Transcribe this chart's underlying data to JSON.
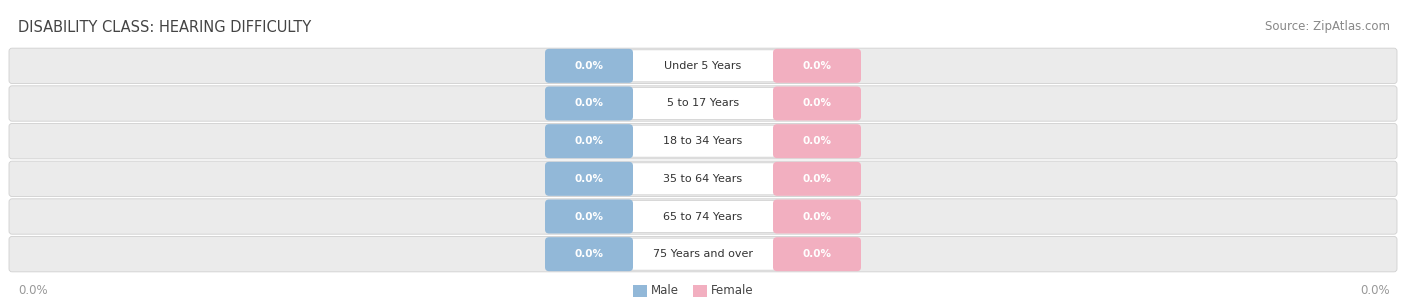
{
  "title": "DISABILITY CLASS: HEARING DIFFICULTY",
  "source": "Source: ZipAtlas.com",
  "categories": [
    "Under 5 Years",
    "5 to 17 Years",
    "18 to 34 Years",
    "35 to 64 Years",
    "65 to 74 Years",
    "75 Years and over"
  ],
  "male_values": [
    0.0,
    0.0,
    0.0,
    0.0,
    0.0,
    0.0
  ],
  "female_values": [
    0.0,
    0.0,
    0.0,
    0.0,
    0.0,
    0.0
  ],
  "male_color": "#92b8d8",
  "female_color": "#f2afc0",
  "male_label": "Male",
  "female_label": "Female",
  "bar_bg_color": "#ebebeb",
  "bar_border_color": "#d0d0d0",
  "background_color": "#ffffff",
  "title_fontsize": 10.5,
  "source_fontsize": 8.5,
  "label_color": "#333333",
  "axis_label_color": "#888888",
  "x_left_label": "0.0%",
  "x_right_label": "0.0%"
}
